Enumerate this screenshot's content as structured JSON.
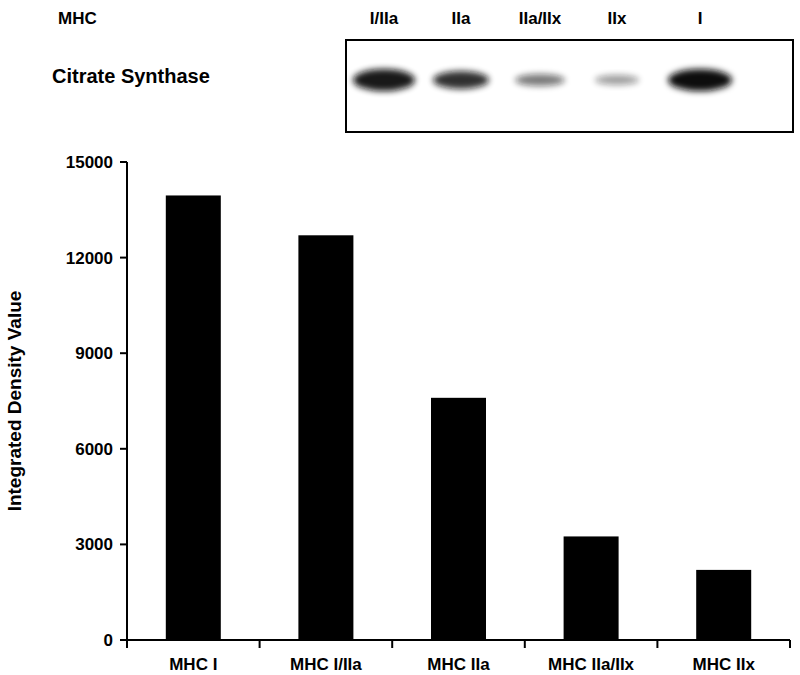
{
  "blot": {
    "header_label": "MHC",
    "row_label": "Citrate Synthase",
    "lanes": [
      "I/IIa",
      "IIa",
      "IIa/IIx",
      "IIx",
      "I"
    ]
  },
  "chart_data": {
    "type": "bar",
    "ylabel": "Integrated Density Value",
    "categories": [
      "MHC I",
      "MHC I/IIa",
      "MHC IIa",
      "MHC IIa/IIx",
      "MHC IIx"
    ],
    "values": [
      13950,
      12700,
      7600,
      3250,
      2200
    ],
    "color": "#000000",
    "ylim": [
      0,
      15000
    ],
    "yticks": [
      0,
      3000,
      6000,
      9000,
      12000,
      15000
    ],
    "grid": false
  }
}
